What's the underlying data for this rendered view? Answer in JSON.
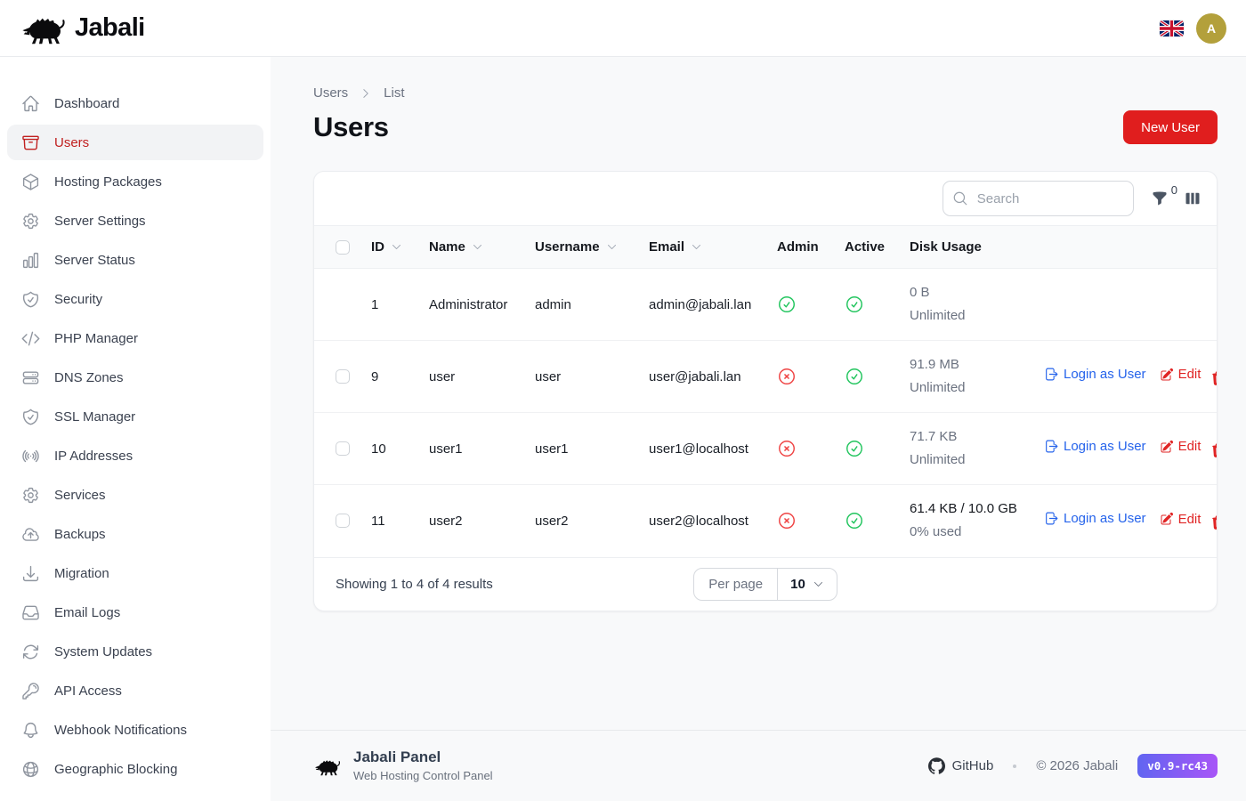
{
  "topbar": {
    "brand": "Jabali",
    "avatar_initial": "A",
    "language_flag": "uk-flag"
  },
  "sidebar": {
    "items": [
      {
        "label": "Dashboard",
        "icon": "home",
        "active": false
      },
      {
        "label": "Users",
        "icon": "archive-box",
        "active": true
      },
      {
        "label": "Hosting Packages",
        "icon": "package",
        "active": false
      },
      {
        "label": "Server Settings",
        "icon": "cog",
        "active": false
      },
      {
        "label": "Server Status",
        "icon": "bar-chart",
        "active": false
      },
      {
        "label": "Security",
        "icon": "shield-check",
        "active": false
      },
      {
        "label": "PHP Manager",
        "icon": "code",
        "active": false
      },
      {
        "label": "DNS Zones",
        "icon": "server-stack",
        "active": false
      },
      {
        "label": "SSL Manager",
        "icon": "shield-check",
        "active": false
      },
      {
        "label": "IP Addresses",
        "icon": "signal",
        "active": false
      },
      {
        "label": "Services",
        "icon": "cog",
        "active": false
      },
      {
        "label": "Backups",
        "icon": "cloud-upload",
        "active": false
      },
      {
        "label": "Migration",
        "icon": "download-tray",
        "active": false
      },
      {
        "label": "Email Logs",
        "icon": "inbox",
        "active": false
      },
      {
        "label": "System Updates",
        "icon": "arrow-path",
        "active": false
      },
      {
        "label": "API Access",
        "icon": "key",
        "active": false
      },
      {
        "label": "Webhook Notifications",
        "icon": "bell",
        "active": false
      },
      {
        "label": "Geographic Blocking",
        "icon": "globe",
        "active": false
      }
    ]
  },
  "breadcrumb": {
    "parent": "Users",
    "current": "List"
  },
  "page": {
    "title": "Users",
    "new_user_button": "New User"
  },
  "toolbar": {
    "search_placeholder": "Search",
    "filter_count": "0"
  },
  "table": {
    "columns": [
      {
        "label": "ID",
        "sortable": true
      },
      {
        "label": "Name",
        "sortable": true
      },
      {
        "label": "Username",
        "sortable": true
      },
      {
        "label": "Email",
        "sortable": true
      },
      {
        "label": "Admin",
        "sortable": false
      },
      {
        "label": "Active",
        "sortable": false
      },
      {
        "label": "Disk Usage",
        "sortable": false
      }
    ],
    "rows": [
      {
        "id": "1",
        "name": "Administrator",
        "username": "admin",
        "email": "admin@jabali.lan",
        "admin": true,
        "active": true,
        "disk_primary": "0 B",
        "disk_secondary": "Unlimited",
        "disk_emphasis": false,
        "selectable": false,
        "has_actions": false
      },
      {
        "id": "9",
        "name": "user",
        "username": "user",
        "email": "user@jabali.lan",
        "admin": false,
        "active": true,
        "disk_primary": "91.9 MB",
        "disk_secondary": "Unlimited",
        "disk_emphasis": false,
        "selectable": true,
        "has_actions": true
      },
      {
        "id": "10",
        "name": "user1",
        "username": "user1",
        "email": "user1@localhost",
        "admin": false,
        "active": true,
        "disk_primary": "71.7 KB",
        "disk_secondary": "Unlimited",
        "disk_emphasis": false,
        "selectable": true,
        "has_actions": true
      },
      {
        "id": "11",
        "name": "user2",
        "username": "user2",
        "email": "user2@localhost",
        "admin": false,
        "active": true,
        "disk_primary": "61.4 KB / 10.0 GB",
        "disk_secondary": "0% used",
        "disk_emphasis": true,
        "selectable": true,
        "has_actions": true
      }
    ],
    "actions": {
      "login": "Login as User",
      "edit": "Edit"
    }
  },
  "pagination": {
    "summary": "Showing 1 to 4 of 4 results",
    "per_page_label": "Per page",
    "per_page_value": "10"
  },
  "footer": {
    "brand": "Jabali Panel",
    "tagline": "Web Hosting Control Panel",
    "github_label": "GitHub",
    "copyright": "© 2026 Jabali",
    "version": "v0.9-rc43"
  },
  "colors": {
    "accent_red": "#e01e1e",
    "active_item_red": "#c12020",
    "link_blue": "#2563eb",
    "success_green": "#22c55e",
    "danger_red": "#ef4444",
    "avatar_gold": "#b3a03b",
    "badge_gradient_start": "#6165f1",
    "badge_gradient_end": "#a855f7"
  }
}
